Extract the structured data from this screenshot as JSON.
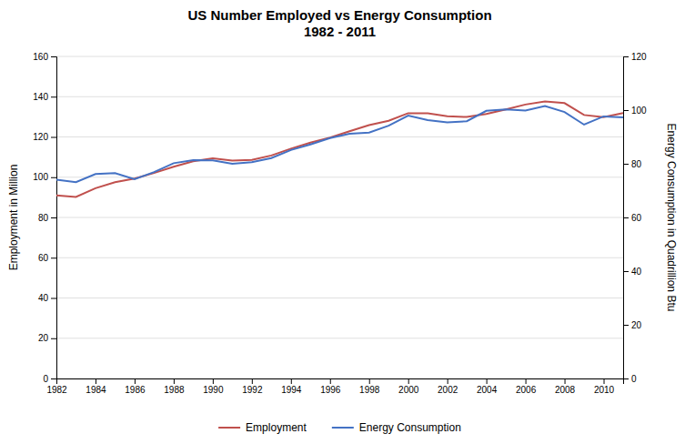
{
  "chart_data": {
    "type": "line",
    "title": "US Number Employed vs Energy Consumption\n1982 - 2011",
    "x": [
      1982,
      1983,
      1984,
      1985,
      1986,
      1987,
      1988,
      1989,
      1990,
      1991,
      1992,
      1993,
      1994,
      1995,
      1996,
      1997,
      1998,
      1999,
      2000,
      2001,
      2002,
      2003,
      2004,
      2005,
      2006,
      2007,
      2008,
      2009,
      2010,
      2011
    ],
    "series": [
      {
        "name": "Employment",
        "color": "#C0504D",
        "values": [
          91.0,
          90.2,
          94.5,
          97.5,
          99.3,
          102.1,
          105.2,
          107.9,
          109.4,
          108.3,
          108.6,
          110.8,
          114.2,
          117.2,
          119.7,
          122.8,
          125.9,
          128.0,
          131.8,
          131.8,
          130.3,
          129.9,
          131.4,
          133.7,
          136.1,
          137.6,
          136.8,
          130.9,
          129.8,
          131.9
        ]
      },
      {
        "name": "Energy Consumption",
        "color": "#4472C4",
        "axis": "y2",
        "values": [
          74.05,
          73.15,
          76.15,
          76.49,
          74.25,
          76.89,
          80.22,
          81.33,
          81.28,
          79.99,
          80.62,
          82.11,
          85.12,
          87.18,
          89.57,
          91.17,
          91.64,
          94.19,
          97.92,
          96.25,
          95.39,
          95.87,
          99.73,
          100.28,
          99.86,
          101.5,
          99.3,
          94.58,
          97.65,
          97.3
        ]
      }
    ],
    "ylabel": "Employment in Million",
    "y2label": "Energy Consumption in Quadrillion Btu",
    "xlim": [
      1982,
      2011
    ],
    "xticks": [
      1982,
      1984,
      1986,
      1988,
      1990,
      1992,
      1994,
      1996,
      1998,
      2000,
      2002,
      2004,
      2006,
      2008,
      2010
    ],
    "ylim": [
      0,
      160
    ],
    "yticks": [
      0,
      20,
      40,
      60,
      80,
      100,
      120,
      140,
      160
    ],
    "y2lim": [
      0,
      120
    ],
    "y2ticks": [
      0,
      20,
      40,
      60,
      80,
      100,
      120
    ],
    "grid": true,
    "legend": "bottom"
  }
}
